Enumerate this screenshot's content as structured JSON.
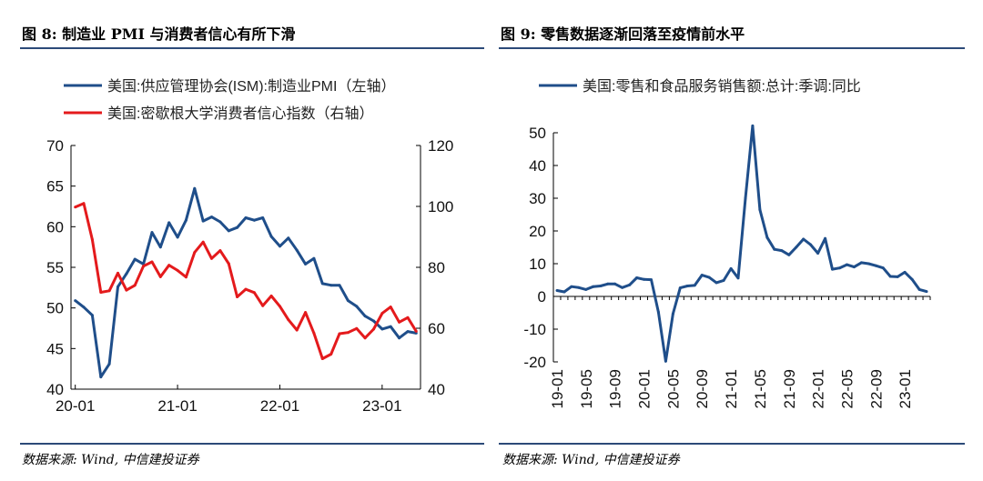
{
  "left": {
    "title": "图 8: 制造业 PMI 与消费者信心有所下滑",
    "source": "数据来源: Wind, 中信建投证券"
  },
  "right": {
    "title": "图 9: 零售数据逐渐回落至疫情前水平",
    "source": "数据来源: Wind, 中信建投证券"
  },
  "colors": {
    "blue": "#1f4e8a",
    "red": "#e41a1c",
    "rule": "#2c4a78"
  },
  "chart_data": [
    {
      "type": "line",
      "title": "制造业 PMI 与消费者信心有所下滑",
      "x_tick_labels": [
        "20-01",
        "21-01",
        "22-01",
        "23-01"
      ],
      "y_left": {
        "range": [
          40,
          70
        ],
        "ticks": [
          40,
          45,
          50,
          55,
          60,
          65,
          70
        ],
        "tick_labels": [
          "40",
          "45",
          "50",
          "55",
          "60",
          "65",
          "70"
        ]
      },
      "y_right": {
        "range": [
          40,
          120
        ],
        "ticks": [
          40,
          60,
          80,
          100,
          120
        ],
        "tick_labels": [
          "40",
          "60",
          "80",
          "100",
          "120"
        ]
      },
      "legend_position": "top-left",
      "series": [
        {
          "name": "美国:供应管理协会(ISM):制造业PMI（左轴）",
          "axis": "left",
          "color": "#1f4e8a",
          "values": [
            50.9,
            50.1,
            49.1,
            41.5,
            43.1,
            52.6,
            54.2,
            56.0,
            55.4,
            59.3,
            57.5,
            60.5,
            58.7,
            60.8,
            64.7,
            60.7,
            61.2,
            60.6,
            59.5,
            59.9,
            61.1,
            60.8,
            61.1,
            58.8,
            57.6,
            58.6,
            57.1,
            55.4,
            56.1,
            53.0,
            52.8,
            52.8,
            50.9,
            50.2,
            49.0,
            48.4,
            47.4,
            47.7,
            46.3,
            47.1,
            46.9
          ]
        },
        {
          "name": "美国:密歇根大学消费者信心指数（右轴）",
          "axis": "right",
          "color": "#e41a1c",
          "values": [
            99.8,
            101.0,
            89.1,
            71.8,
            72.3,
            78.1,
            72.5,
            74.1,
            80.4,
            81.8,
            76.9,
            80.7,
            79.0,
            76.8,
            84.9,
            88.3,
            82.9,
            85.5,
            81.2,
            70.3,
            72.8,
            71.7,
            67.4,
            70.6,
            67.2,
            62.8,
            59.4,
            65.2,
            58.4,
            50.0,
            51.5,
            58.2,
            58.6,
            59.9,
            56.8,
            59.7,
            64.9,
            67.0,
            62.0,
            63.5,
            59.0
          ]
        }
      ]
    },
    {
      "type": "line",
      "title": "零售数据逐渐回落至疫情前水平",
      "x_tick_labels": [
        "19-01",
        "19-05",
        "19-09",
        "20-01",
        "20-05",
        "20-09",
        "21-01",
        "21-05",
        "21-09",
        "22-01",
        "22-05",
        "22-09",
        "23-01"
      ],
      "y": {
        "range": [
          -20,
          50
        ],
        "ticks": [
          -20,
          -10,
          0,
          10,
          20,
          30,
          40,
          50
        ],
        "tick_labels": [
          "-20",
          "-10",
          "0",
          "10",
          "20",
          "30",
          "40",
          "50"
        ]
      },
      "legend_position": "top",
      "series": [
        {
          "name": "美国:零售和食品服务销售额:总计:季调:同比",
          "color": "#1f4e8a",
          "values": [
            1.8,
            1.4,
            3.0,
            2.7,
            2.1,
            3.0,
            3.2,
            3.8,
            3.8,
            2.7,
            3.5,
            5.7,
            5.2,
            5.1,
            -4.8,
            -19.8,
            -5.3,
            2.6,
            3.2,
            3.4,
            6.5,
            5.8,
            4.2,
            4.9,
            8.5,
            5.6,
            30.0,
            52.1,
            26.5,
            18.0,
            14.4,
            14.0,
            12.7,
            15.0,
            17.5,
            15.8,
            13.2,
            17.7,
            8.3,
            8.7,
            9.7,
            9.0,
            10.3,
            10.0,
            9.4,
            8.7,
            6.1,
            6.0,
            7.4,
            5.2,
            2.1,
            1.5
          ]
        }
      ]
    }
  ]
}
